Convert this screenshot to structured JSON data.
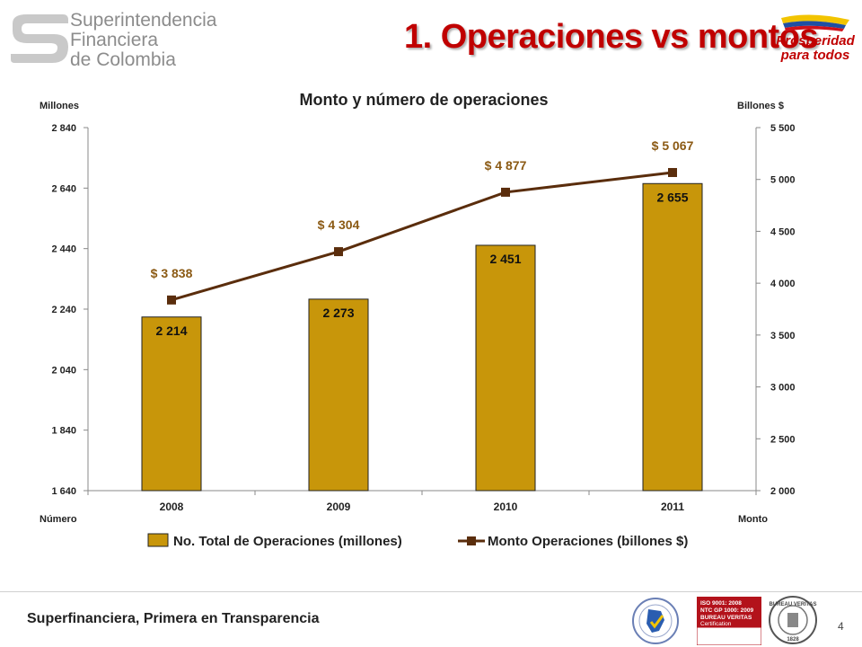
{
  "header": {
    "org_name_lines": [
      "Superintendencia",
      "Financiera",
      "de Colombia"
    ],
    "title": "1. Operaciones vs montos",
    "campaign_logo_lines": [
      "Prosperidad",
      "para todos"
    ]
  },
  "chart_data": {
    "type": "bar+line",
    "title": "Monto y número de operaciones",
    "categories": [
      "2008",
      "2009",
      "2010",
      "2011"
    ],
    "left_axis": {
      "unit_label": "Millones",
      "bottom_label": "Número",
      "range": [
        1640,
        2840
      ],
      "ticks": [
        "1 640",
        "1 840",
        "2 040",
        "2 240",
        "2 440",
        "2 640",
        "2 840"
      ]
    },
    "right_axis": {
      "unit_label": "Billones $",
      "bottom_label": "Monto",
      "range": [
        2000,
        5500
      ],
      "ticks": [
        "2 000",
        "2 500",
        "3 000",
        "3 500",
        "4 000",
        "4 500",
        "5 000",
        "5 500"
      ]
    },
    "series": [
      {
        "name": "No. Total de Operaciones (millones)",
        "type": "bar",
        "axis": "left",
        "color": "#C8960A",
        "values": [
          2214,
          2273,
          2451,
          2655
        ],
        "labels": [
          "2 214",
          "2 273",
          "2 451",
          "2 655"
        ]
      },
      {
        "name": "Monto Operaciones (billones $)",
        "type": "line",
        "axis": "right",
        "color": "#5A2D0C",
        "values": [
          3838,
          4304,
          4877,
          5067
        ],
        "labels": [
          "$ 3 838",
          "$ 4 304",
          "$ 4 877",
          "$ 5 067"
        ]
      }
    ],
    "legend_position": "bottom",
    "grid": false
  },
  "footer": {
    "tagline": "Superfinanciera, Primera en Transparencia",
    "page_number": "4",
    "cert_lines": [
      "ISO 9001: 2008",
      "NTC GP 1000: 2009",
      "BUREAU VERITAS",
      "Certification"
    ],
    "cert_round_text": "BUREAU VERITAS",
    "cert_round_year": "1828"
  },
  "colors": {
    "title_red": "#C00000",
    "bar_gold": "#C8960A",
    "line_brown": "#5A2D0C",
    "label_brown": "#8B5A14"
  }
}
